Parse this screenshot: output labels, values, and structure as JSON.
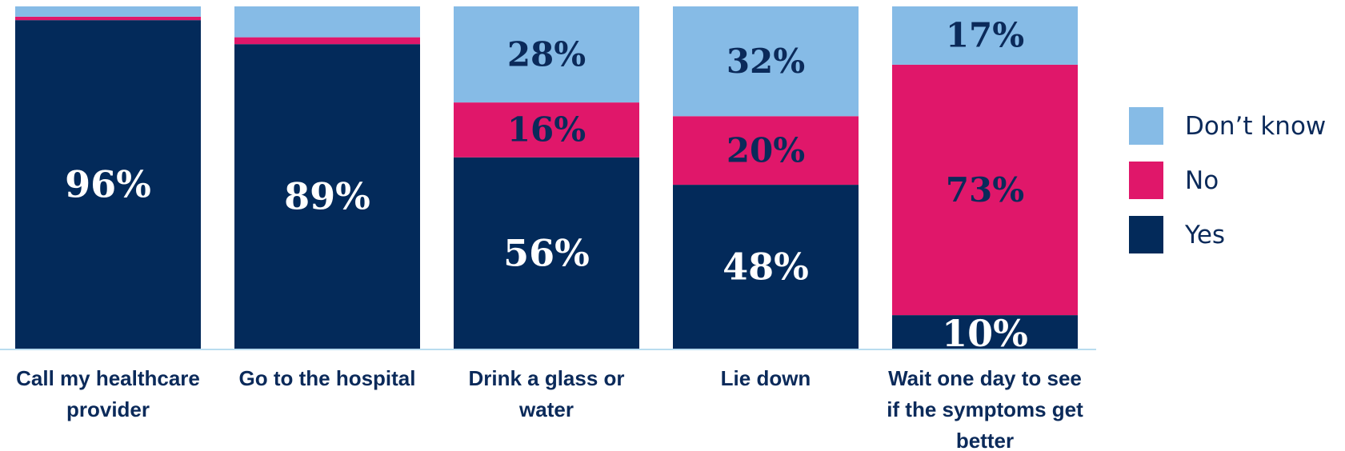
{
  "colors": {
    "yes": "#032a5a",
    "no": "#e0176a",
    "dont_know": "#86bbe6",
    "axis": "#b9dcef"
  },
  "chart_data": {
    "type": "bar",
    "stacked": true,
    "normalized": true,
    "ylim": [
      0,
      100
    ],
    "grid": false,
    "legend_position": "right",
    "categories": [
      [
        "Call my healthcare",
        "provider"
      ],
      [
        "Go to the hospital"
      ],
      [
        "Drink a glass or",
        "water"
      ],
      [
        "Lie down"
      ],
      [
        "Wait one day to see",
        "if the symptoms get",
        "better"
      ]
    ],
    "series": [
      {
        "name": "Yes",
        "color_key": "yes",
        "values": [
          96,
          89,
          56,
          48,
          10
        ],
        "labels": [
          "96%",
          "89%",
          "56%",
          "48%",
          "10%"
        ]
      },
      {
        "name": "No",
        "color_key": "no",
        "values": [
          1,
          2,
          16,
          20,
          73
        ],
        "labels": [
          "",
          "",
          "16%",
          "20%",
          "73%"
        ]
      },
      {
        "name": "Don’t know",
        "color_key": "dont_know",
        "values": [
          3,
          9,
          28,
          32,
          17
        ],
        "labels": [
          "",
          "",
          "28%",
          "32%",
          "17%"
        ]
      }
    ],
    "legend_order": [
      "Don’t know",
      "No",
      "Yes"
    ]
  }
}
